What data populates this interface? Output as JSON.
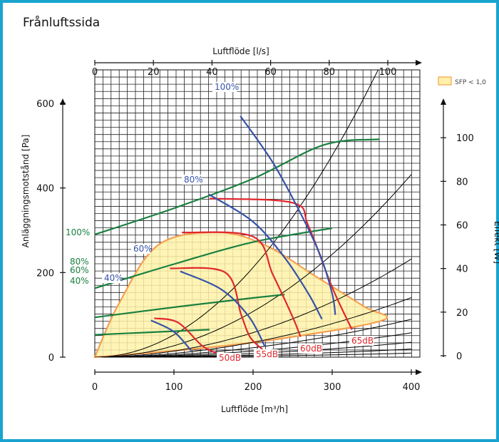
{
  "title": "Frånluftssida",
  "chart_data": {
    "type": "line",
    "title": "Frånluftssida",
    "x_top_label": "Luftflöde [l/s]",
    "x_top_ticks": [
      "0",
      "20",
      "40",
      "60",
      "80",
      "100"
    ],
    "x_top_range": [
      0,
      100
    ],
    "x_bottom_label": "Luftflöde [m³/h]",
    "x_bottom_ticks": [
      "0",
      "100",
      "200",
      "300",
      "400"
    ],
    "x_bottom_range": [
      0,
      400
    ],
    "y_left_label": "Anläggningsmotstånd [Pa]",
    "y_left_ticks": [
      "0",
      "200",
      "400",
      "600"
    ],
    "y_left_range": [
      0,
      600
    ],
    "y_right_label": "Effekt [W]",
    "y_right_ticks": [
      "0",
      "20",
      "40",
      "60",
      "80",
      "100"
    ],
    "y_right_range": [
      0,
      120
    ],
    "legend": {
      "label": "SFP < 1,0",
      "color": "#fff2a8",
      "border": "#f5a050"
    },
    "colors": {
      "pressure_curve": "#3752a8",
      "sound_curve": "#e0282e",
      "power_curve": "#1a8040",
      "sfp": "#f5a050",
      "system_curve": "#000000"
    },
    "pressure_curves": [
      {
        "name": "100%",
        "points": [
          [
            184,
            570
          ],
          [
            225,
            460
          ],
          [
            260,
            340
          ],
          [
            285,
            240
          ],
          [
            300,
            150
          ],
          [
            304,
            100
          ]
        ]
      },
      {
        "name": "80%",
        "points": [
          [
            144,
            385
          ],
          [
            200,
            320
          ],
          [
            240,
            235
          ],
          [
            270,
            150
          ],
          [
            287,
            90
          ]
        ]
      },
      {
        "name": "60%",
        "points": [
          [
            108,
            203
          ],
          [
            160,
            160
          ],
          [
            195,
            95
          ],
          [
            215,
            25
          ]
        ]
      },
      {
        "name": "40%",
        "points": [
          [
            71,
            87
          ],
          [
            100,
            60
          ],
          [
            122,
            15
          ]
        ]
      }
    ],
    "sound_curves": [
      {
        "name": "50dB",
        "points": [
          [
            75,
            92
          ],
          [
            105,
            82
          ],
          [
            135,
            28
          ],
          [
            153,
            10
          ]
        ]
      },
      {
        "name": "55dB",
        "points": [
          [
            95,
            210
          ],
          [
            165,
            200
          ],
          [
            185,
            100
          ],
          [
            196,
            48
          ],
          [
            212,
            18
          ]
        ]
      },
      {
        "name": "60dB",
        "points": [
          [
            110,
            295
          ],
          [
            200,
            285
          ],
          [
            225,
            195
          ],
          [
            250,
            95
          ],
          [
            260,
            48
          ]
        ]
      },
      {
        "name": "65dB",
        "points": [
          [
            145,
            375
          ],
          [
            250,
            365
          ],
          [
            270,
            310
          ],
          [
            300,
            165
          ],
          [
            325,
            65
          ]
        ]
      }
    ],
    "power_curves": [
      {
        "name": "100%",
        "points": [
          [
            0,
            290
          ],
          [
            100,
            352
          ],
          [
            200,
            422
          ],
          [
            290,
            502
          ],
          [
            360,
            515
          ]
        ]
      },
      {
        "name": "80%",
        "points": [
          [
            0,
            163
          ],
          [
            100,
            220
          ],
          [
            200,
            272
          ],
          [
            300,
            305
          ]
        ]
      },
      {
        "name": "60%",
        "points": [
          [
            0,
            94
          ],
          [
            100,
            118
          ],
          [
            200,
            140
          ],
          [
            240,
            148
          ]
        ]
      },
      {
        "name": "40%",
        "points": [
          [
            0,
            53
          ],
          [
            60,
            58
          ],
          [
            120,
            63
          ],
          [
            145,
            65
          ]
        ]
      }
    ],
    "sound_labels": [
      "50dB",
      "55dB",
      "60dB",
      "65dB"
    ],
    "sfp_region": [
      [
        0,
        0
      ],
      [
        30,
        125
      ],
      [
        80,
        265
      ],
      [
        155,
        295
      ],
      [
        215,
        265
      ],
      [
        280,
        190
      ],
      [
        340,
        120
      ],
      [
        365,
        88
      ],
      [
        250,
        48
      ],
      [
        140,
        22
      ],
      [
        0,
        0
      ]
    ]
  }
}
